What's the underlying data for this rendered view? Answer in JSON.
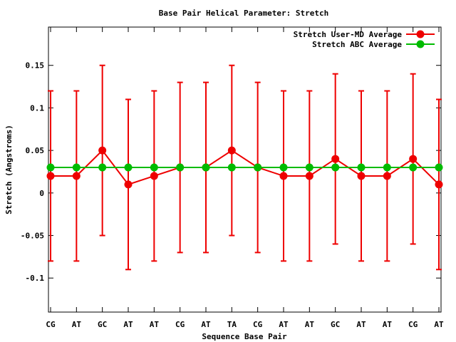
{
  "chart_data": {
    "type": "line",
    "title": "Base Pair Helical Parameter: Stretch",
    "xlabel": "Sequence Base Pair",
    "ylabel": "Stretch (Angstroms)",
    "categories": [
      "CG",
      "AT",
      "GC",
      "AT",
      "AT",
      "CG",
      "AT",
      "TA",
      "CG",
      "AT",
      "AT",
      "GC",
      "AT",
      "AT",
      "CG",
      "AT"
    ],
    "ylim": [
      -0.14,
      0.195
    ],
    "yticks": [
      {
        "value": 0.15,
        "label": "0.15"
      },
      {
        "value": 0.1,
        "label": "0.1"
      },
      {
        "value": 0.05,
        "label": "0.05"
      },
      {
        "value": 0,
        "label": "0"
      },
      {
        "value": -0.05,
        "label": "-0.05"
      },
      {
        "value": -0.1,
        "label": "-0.1"
      }
    ],
    "grid": false,
    "legend_position": "top-right",
    "series": [
      {
        "name": "Stretch User-MD Average",
        "color": "#ee0000",
        "values": [
          0.02,
          0.02,
          0.05,
          0.01,
          0.02,
          0.03,
          0.03,
          0.05,
          0.03,
          0.02,
          0.02,
          0.04,
          0.02,
          0.02,
          0.04,
          0.01
        ],
        "error_low": [
          -0.08,
          -0.08,
          -0.05,
          -0.09,
          -0.08,
          -0.07,
          -0.07,
          -0.05,
          -0.07,
          -0.08,
          -0.08,
          -0.06,
          -0.08,
          -0.08,
          -0.06,
          -0.09
        ],
        "error_high": [
          0.12,
          0.12,
          0.15,
          0.11,
          0.12,
          0.13,
          0.13,
          0.15,
          0.13,
          0.12,
          0.12,
          0.14,
          0.12,
          0.12,
          0.14,
          0.11
        ]
      },
      {
        "name": "Stretch ABC Average",
        "color": "#00bb00",
        "values": [
          0.03,
          0.03,
          0.03,
          0.03,
          0.03,
          0.03,
          0.03,
          0.03,
          0.03,
          0.03,
          0.03,
          0.03,
          0.03,
          0.03,
          0.03,
          0.03
        ]
      }
    ]
  }
}
